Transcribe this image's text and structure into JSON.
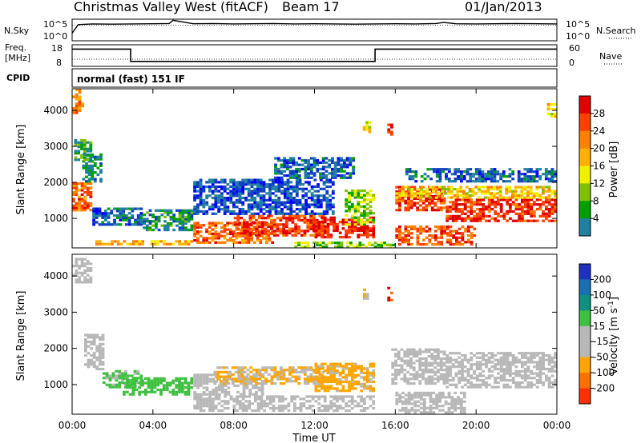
{
  "header": {
    "site": "Christmas Valley West (fitACF)",
    "beam": "Beam 17",
    "date": "01/Jan/2013"
  },
  "nsky_panel": {
    "left_label": "N.Sky",
    "left_ticks": [
      "10^5",
      "10^0"
    ],
    "right_label": "N.Search",
    "right_ticks": [
      "10^5",
      "10^0"
    ]
  },
  "freq_panel": {
    "left_label_1": "Freq.",
    "left_label_2": "[MHz]",
    "left_ticks": [
      "18",
      "8"
    ],
    "right_label": "Nave",
    "right_ticks": [
      "60",
      "0"
    ]
  },
  "cpid_panel": {
    "label": "CPID",
    "text": "normal (fast) 151 IF"
  },
  "axes": {
    "ylabel": "Slant Range [km]",
    "yticks": [
      "4000",
      "3000",
      "2000",
      "1000"
    ],
    "xlabel": "Time UT",
    "xticks": [
      "00:00",
      "04:00",
      "08:00",
      "12:00",
      "16:00",
      "20:00",
      "00:00"
    ]
  },
  "power_colorbar": {
    "label": "Power [dB]",
    "ticks": [
      "28",
      "24",
      "20",
      "16",
      "12",
      "8",
      "4"
    ],
    "colors": [
      "#e00000",
      "#ff4000",
      "#ff8000",
      "#ffb000",
      "#f0f000",
      "#80c000",
      "#00a000",
      "#2080a0",
      "#1040c0",
      "#0000ff"
    ]
  },
  "velocity_colorbar": {
    "label": "Velocity [m s",
    "label_exp": "-1",
    "label_end": "]",
    "ticks": [
      "200",
      "100",
      "50",
      "15",
      "-15",
      "-50",
      "-100",
      "-200"
    ],
    "colors": [
      "#2030c0",
      "#1a70b0",
      "#109080",
      "#40c040",
      "#b8b8b8",
      "#b8b8b8",
      "#ffa500",
      "#ff7000",
      "#ff3000",
      "#e00000"
    ]
  },
  "chart_data": [
    {
      "type": "line",
      "title": "N.Sky / N.Search",
      "xlim": [
        0,
        24
      ],
      "series": [
        {
          "name": "N.Sky",
          "x": [
            0,
            0.3,
            1,
            2,
            3,
            4,
            4.8,
            5,
            6,
            7,
            8,
            9,
            10,
            11,
            12,
            13,
            14,
            15,
            16,
            17,
            18,
            18.4,
            19,
            20,
            21,
            22,
            23,
            24
          ],
          "y": [
            0.35,
            0.75,
            0.78,
            0.77,
            0.78,
            0.79,
            0.8,
            0.95,
            0.79,
            0.8,
            0.78,
            0.79,
            0.8,
            0.78,
            0.79,
            0.78,
            0.77,
            0.78,
            0.79,
            0.78,
            0.8,
            0.85,
            0.79,
            0.78,
            0.79,
            0.8,
            0.79,
            0.78
          ]
        },
        {
          "name": "N.Search",
          "x": [
            0,
            24
          ],
          "y": [
            0.72,
            0.72
          ]
        }
      ]
    },
    {
      "type": "line",
      "title": "Freq / Nave",
      "xlim": [
        0,
        24
      ],
      "series": [
        {
          "name": "Freq [MHz]",
          "x": [
            0,
            2.9,
            2.9,
            15.0,
            15.0,
            24
          ],
          "y": [
            16,
            16,
            10.3,
            10.3,
            16,
            16
          ]
        },
        {
          "name": "Nave",
          "x": [
            0,
            24
          ],
          "y": [
            20,
            20
          ]
        }
      ],
      "ylim_left": [
        8,
        18
      ],
      "ylim_right": [
        0,
        60
      ]
    },
    {
      "type": "heatmap",
      "title": "Power [dB]",
      "xlabel": "Time UT",
      "ylabel": "Slant Range [km]",
      "xlim": [
        0,
        24
      ],
      "ylim": [
        180,
        4600
      ],
      "zrange": [
        0,
        30
      ],
      "blobs": [
        {
          "t": [
            0,
            1.0
          ],
          "r": [
            1200,
            2000
          ],
          "p": 24
        },
        {
          "t": [
            0.5,
            1.5
          ],
          "r": [
            2000,
            2800
          ],
          "p": 8
        },
        {
          "t": [
            0,
            0.6
          ],
          "r": [
            3900,
            4600
          ],
          "p": 22
        },
        {
          "t": [
            0.1,
            1.0
          ],
          "r": [
            2600,
            3200
          ],
          "p": 10
        },
        {
          "t": [
            1.0,
            3.5
          ],
          "r": [
            800,
            1300
          ],
          "p": 6
        },
        {
          "t": [
            3.5,
            6.0
          ],
          "r": [
            650,
            1250
          ],
          "p": 9
        },
        {
          "t": [
            1.0,
            6.0
          ],
          "r": [
            250,
            400
          ],
          "p": 20
        },
        {
          "t": [
            6.0,
            10.0
          ],
          "r": [
            300,
            900
          ],
          "p": 24
        },
        {
          "t": [
            8.0,
            12.5
          ],
          "r": [
            500,
            1100
          ],
          "p": 26
        },
        {
          "t": [
            6.0,
            13.0
          ],
          "r": [
            1100,
            2100
          ],
          "p": 5
        },
        {
          "t": [
            10.0,
            14.0
          ],
          "r": [
            2100,
            2700
          ],
          "p": 6
        },
        {
          "t": [
            12.0,
            15.0
          ],
          "r": [
            450,
            1050
          ],
          "p": 28
        },
        {
          "t": [
            13.5,
            15.0
          ],
          "r": [
            800,
            1800
          ],
          "p": 14
        },
        {
          "t": [
            11.0,
            16.0
          ],
          "r": [
            180,
            350
          ],
          "p": 14
        },
        {
          "t": [
            16.0,
            18.5
          ],
          "r": [
            1200,
            1900
          ],
          "p": 26
        },
        {
          "t": [
            18.5,
            24.0
          ],
          "r": [
            900,
            1550
          ],
          "p": 27
        },
        {
          "t": [
            16.0,
            24.0
          ],
          "r": [
            1550,
            1900
          ],
          "p": 18
        },
        {
          "t": [
            16.5,
            24.0
          ],
          "r": [
            2000,
            2400
          ],
          "p": 6
        },
        {
          "t": [
            16.0,
            20.0
          ],
          "r": [
            250,
            800
          ],
          "p": 25
        },
        {
          "t": [
            15.6,
            15.9
          ],
          "r": [
            3300,
            3700
          ],
          "p": 28
        },
        {
          "t": [
            14.4,
            14.8
          ],
          "r": [
            3300,
            3700
          ],
          "p": 18
        },
        {
          "t": [
            23.5,
            24.0
          ],
          "r": [
            3800,
            4200
          ],
          "p": 18
        }
      ]
    },
    {
      "type": "heatmap",
      "title": "Velocity [m s-1]",
      "xlabel": "Time UT",
      "ylabel": "Slant Range [km]",
      "xlim": [
        0,
        24
      ],
      "ylim": [
        180,
        4600
      ],
      "zrange": [
        -250,
        250
      ],
      "blobs": [
        {
          "t": [
            0.6,
            1.6
          ],
          "r": [
            1400,
            2400
          ],
          "v": 0
        },
        {
          "t": [
            0,
            1.0
          ],
          "r": [
            3800,
            4500
          ],
          "v": 0
        },
        {
          "t": [
            1.5,
            3.5
          ],
          "r": [
            900,
            1400
          ],
          "v": 25
        },
        {
          "t": [
            2.5,
            6.0
          ],
          "r": [
            700,
            1200
          ],
          "v": 30
        },
        {
          "t": [
            6.0,
            9.5
          ],
          "r": [
            700,
            1300
          ],
          "v": 0
        },
        {
          "t": [
            6.0,
            15.0
          ],
          "r": [
            250,
            700
          ],
          "v": -25
        },
        {
          "t": [
            7.0,
            12.5
          ],
          "r": [
            1000,
            1500
          ],
          "v": -50
        },
        {
          "t": [
            12.0,
            15.0
          ],
          "r": [
            800,
            1600
          ],
          "v": -60
        },
        {
          "t": [
            15.8,
            18.5
          ],
          "r": [
            1000,
            2000
          ],
          "v": 0
        },
        {
          "t": [
            18.5,
            24.0
          ],
          "r": [
            900,
            1900
          ],
          "v": 0
        },
        {
          "t": [
            16.0,
            19.5
          ],
          "r": [
            200,
            800
          ],
          "v": 0
        },
        {
          "t": [
            15.6,
            15.9
          ],
          "r": [
            3300,
            3700
          ],
          "v": -200
        },
        {
          "t": [
            14.4,
            14.7
          ],
          "r": [
            3350,
            3650
          ],
          "v": -40
        }
      ]
    }
  ]
}
